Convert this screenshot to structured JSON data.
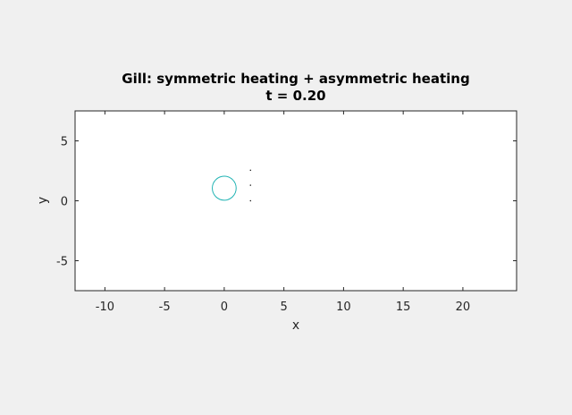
{
  "chart_data": {
    "type": "line",
    "title": "Gill: symmetric heating + asymmetric heating",
    "subtitle": "t = 0.20",
    "xlabel": "x",
    "ylabel": "y",
    "xlim": [
      -12.5,
      24.5
    ],
    "ylim": [
      -7.5,
      7.5
    ],
    "xticks": [
      -10,
      -5,
      0,
      5,
      10,
      15,
      20
    ],
    "yticks": [
      5,
      0,
      -5
    ],
    "grid": false,
    "series": [
      {
        "type": "contour-circle",
        "color": "#1fb3b3",
        "center": [
          0.0,
          1.05
        ],
        "radius_x": 1.0,
        "radius_y": 1.0
      },
      {
        "type": "dots",
        "color": "#000000",
        "points": [
          [
            2.2,
            2.55
          ],
          [
            2.2,
            1.3
          ],
          [
            2.2,
            0.0
          ]
        ]
      }
    ]
  }
}
